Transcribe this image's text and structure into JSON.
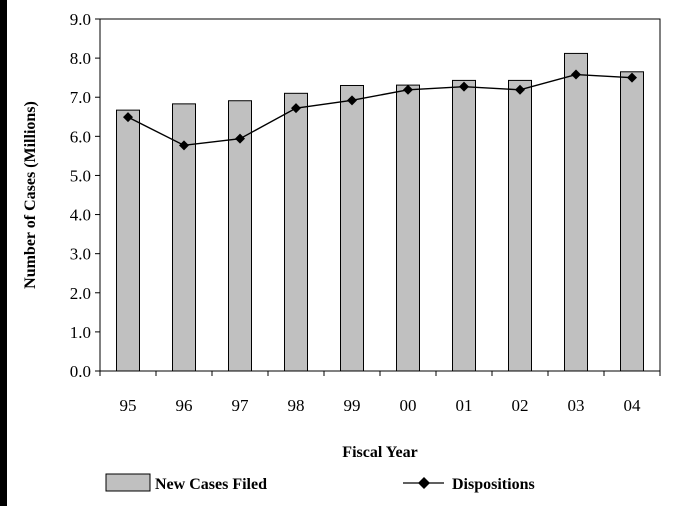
{
  "chart_data": {
    "type": "bar",
    "title": "",
    "xlabel": "Fiscal Year",
    "ylabel": "Number of Cases (Millions)",
    "ylim": [
      0,
      9
    ],
    "yticks": [
      "0.0",
      "1.0",
      "2.0",
      "3.0",
      "4.0",
      "5.0",
      "6.0",
      "7.0",
      "8.0",
      "9.0"
    ],
    "categories": [
      "95",
      "96",
      "97",
      "98",
      "99",
      "00",
      "01",
      "02",
      "03",
      "04"
    ],
    "grid": false,
    "legend_position": "bottom",
    "series": [
      {
        "name": "New Cases Filed",
        "type": "bar",
        "color": "#c0c0c0",
        "values": [
          6.67,
          6.83,
          6.91,
          7.1,
          7.3,
          7.31,
          7.43,
          7.43,
          8.12,
          7.65
        ]
      },
      {
        "name": "Dispositions",
        "type": "line",
        "color": "#000000",
        "marker": "diamond",
        "values": [
          6.49,
          5.77,
          5.94,
          6.72,
          6.92,
          7.19,
          7.27,
          7.19,
          7.58,
          7.5
        ]
      }
    ]
  }
}
